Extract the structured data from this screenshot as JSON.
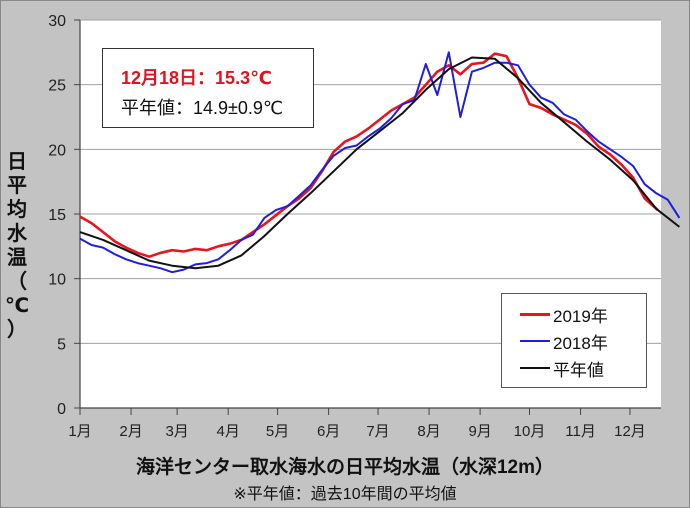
{
  "chart_data": {
    "type": "line",
    "title": "海洋センター取水海水の日平均水温（水深12m）",
    "subtitle": "※平年値：過去10年間の平均値",
    "xlabel": "海洋センター取水海水の日平均水温（水深12m）",
    "ylabel": "日平均水温（℃）",
    "ylim": [
      0,
      30
    ],
    "yticks": [
      0,
      5,
      10,
      15,
      20,
      25,
      30
    ],
    "categories": [
      "1月",
      "2月",
      "3月",
      "4月",
      "5月",
      "6月",
      "7月",
      "8月",
      "9月",
      "10月",
      "11月",
      "12月"
    ],
    "x_unit": "day_of_year",
    "grid": "horizontal",
    "legend_position": "bottom-right",
    "annotation": {
      "line1": "12月18日：15.3℃",
      "line2": "平年値：14.9±0.9℃"
    },
    "series": [
      {
        "name": "2019年",
        "color": "#e8141e",
        "x": [
          1,
          8,
          15,
          22,
          29,
          36,
          43,
          50,
          57,
          64,
          71,
          78,
          85,
          92,
          99,
          106,
          113,
          120,
          127,
          134,
          141,
          148,
          155,
          162,
          169,
          176,
          183,
          190,
          197,
          204,
          211,
          218,
          225,
          232,
          239,
          246,
          253,
          260,
          267,
          274,
          281,
          288,
          295,
          302,
          309,
          316,
          323,
          330,
          337,
          344,
          352
        ],
        "values": [
          14.8,
          14.3,
          13.6,
          12.9,
          12.4,
          12.0,
          11.7,
          12.0,
          12.2,
          12.1,
          12.3,
          12.2,
          12.5,
          12.7,
          13.0,
          13.6,
          14.2,
          14.9,
          15.6,
          16.2,
          17.0,
          18.3,
          19.8,
          20.6,
          21.0,
          21.6,
          22.3,
          23.0,
          23.5,
          24.0,
          25.0,
          26.0,
          26.5,
          25.8,
          26.6,
          26.7,
          27.4,
          27.2,
          25.5,
          23.5,
          23.2,
          22.7,
          22.3,
          21.9,
          21.2,
          20.2,
          19.6,
          18.8,
          17.8,
          16.2,
          15.3
        ]
      },
      {
        "name": "2018年",
        "color": "#1e1ee0",
        "x": [
          1,
          8,
          15,
          22,
          29,
          36,
          43,
          50,
          57,
          64,
          71,
          78,
          85,
          92,
          99,
          106,
          113,
          120,
          127,
          134,
          141,
          148,
          155,
          162,
          169,
          176,
          183,
          190,
          197,
          204,
          211,
          218,
          225,
          232,
          239,
          246,
          253,
          260,
          267,
          274,
          281,
          288,
          295,
          302,
          309,
          316,
          323,
          330,
          337,
          344,
          351,
          358,
          365
        ],
        "values": [
          13.1,
          12.6,
          12.4,
          11.9,
          11.5,
          11.2,
          11.0,
          10.8,
          10.5,
          10.7,
          11.1,
          11.2,
          11.5,
          12.2,
          13.0,
          13.4,
          14.7,
          15.3,
          15.6,
          16.4,
          17.2,
          18.4,
          19.5,
          20.1,
          20.3,
          21.0,
          21.6,
          22.4,
          23.5,
          23.8,
          26.6,
          24.2,
          27.5,
          22.5,
          26.0,
          26.3,
          26.7,
          26.7,
          26.5,
          25.0,
          24.0,
          23.6,
          22.7,
          22.3,
          21.4,
          20.6,
          20.0,
          19.4,
          18.7,
          17.3,
          16.6,
          16.1,
          14.7
        ]
      },
      {
        "name": "平年値",
        "color": "#111111",
        "x": [
          1,
          15,
          29,
          43,
          57,
          71,
          85,
          99,
          113,
          127,
          141,
          155,
          169,
          183,
          197,
          211,
          225,
          239,
          253,
          267,
          281,
          295,
          309,
          323,
          337,
          351,
          365
        ],
        "values": [
          13.6,
          13.0,
          12.2,
          11.4,
          11.0,
          10.8,
          11.0,
          11.8,
          13.3,
          15.0,
          16.6,
          18.3,
          20.0,
          21.4,
          22.8,
          24.6,
          26.2,
          27.1,
          27.0,
          25.5,
          23.6,
          22.1,
          20.6,
          19.2,
          17.6,
          15.4,
          14.0
        ]
      }
    ]
  },
  "legend": {
    "items": [
      {
        "label": "2019年",
        "color": "#e8141e"
      },
      {
        "label": "2018年",
        "color": "#1e1ee0"
      },
      {
        "label": "平年値",
        "color": "#111111"
      }
    ]
  },
  "ylabel_chars": [
    "日",
    "平",
    "均",
    "水",
    "温",
    "（",
    "℃",
    "）"
  ]
}
